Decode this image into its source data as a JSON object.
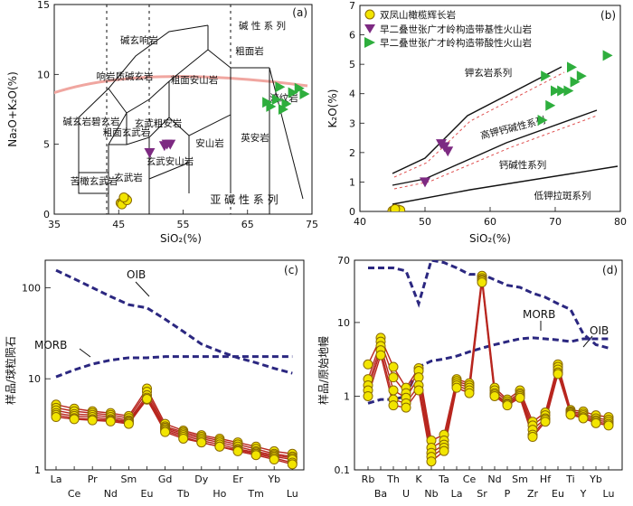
{
  "colors": {
    "basalt": "#f2e500",
    "basalt_edge": "#8a6a00",
    "mafic": "#7d2a82",
    "felsic": "#2eae3d",
    "ref_curves": "#2b2780",
    "spider_lines": "#b8261f",
    "tas_curve": "#f0a6a0"
  },
  "chart_data": [
    {
      "panel": "(a)",
      "type": "scatter",
      "xlabel": "SiO₂(%)",
      "ylabel": "Na₂O+K₂O(%)",
      "xlim": [
        35,
        75
      ],
      "ylim": [
        0,
        15
      ],
      "xticks": [
        35,
        45,
        55,
        65,
        75
      ],
      "yticks": [
        0,
        5,
        10,
        15
      ],
      "region_labels": [
        "碱玄响岩",
        "响岩质碱玄岩",
        "粗面安山岩",
        "粗面岩",
        "碱玄岩碧玄岩",
        "玄武粗安岩",
        "粗面玄武岩",
        "流纹岩",
        "玄武安山岩",
        "安山岩",
        "英安岩",
        "苦橄玄武岩",
        "玄武岩",
        "碱 性 系 列",
        "亚 碱 性 系 列"
      ],
      "series": [
        {
          "name": "双凤山橄榄辉长岩",
          "x": [
            45.3,
            45.6,
            45.9,
            46.1,
            45.5,
            46.3,
            45.8
          ],
          "y": [
            0.8,
            0.9,
            1.0,
            1.1,
            0.7,
            1.0,
            1.2
          ]
        },
        {
          "name": "早二叠世张广才岭构造带基性火山岩",
          "x": [
            49.8,
            52.1,
            52.5,
            53.0
          ],
          "y": [
            4.4,
            4.9,
            5.0,
            5.0
          ]
        },
        {
          "name": "早二叠世张广才岭构造带酸性火山岩",
          "x": [
            68.0,
            68.6,
            69.5,
            70.0,
            70.5,
            71.0,
            72.0,
            73.0,
            73.8
          ],
          "y": [
            8.0,
            7.7,
            8.2,
            9.1,
            7.5,
            7.9,
            8.7,
            9.0,
            8.6
          ]
        }
      ]
    },
    {
      "panel": "(b)",
      "type": "scatter",
      "xlabel": "SiO₂(%)",
      "ylabel": "K₂O(%)",
      "xlim": [
        40,
        80
      ],
      "ylim": [
        0,
        7
      ],
      "xticks": [
        40,
        50,
        60,
        70,
        80
      ],
      "yticks": [
        0,
        1,
        2,
        3,
        4,
        5,
        6,
        7
      ],
      "region_labels": [
        "钾玄岩系列",
        "高钾钙碱性系列",
        "钙碱性系列",
        "低钾拉斑系列"
      ],
      "legend": [
        "双凤山橄榄辉长岩",
        "早二叠世张广才岭构造带基性火山岩",
        "早二叠世张广才岭构造带酸性火山岩"
      ],
      "series": [
        {
          "name": "双凤山橄榄辉长岩",
          "x": [
            45.0,
            45.3,
            45.6,
            45.9,
            46.2,
            45.4
          ],
          "y": [
            0.02,
            0.05,
            0.03,
            0.06,
            0.04,
            0.08
          ]
        },
        {
          "name": "早二叠世张广才岭构造带基性火山岩",
          "x": [
            50.0,
            52.5,
            53.0,
            53.5
          ],
          "y": [
            1.0,
            2.3,
            2.2,
            2.05
          ]
        },
        {
          "name": "早二叠世张广才岭构造带酸性火山岩",
          "x": [
            68.0,
            68.5,
            69.2,
            70.0,
            71.0,
            72.0,
            72.5,
            73.0,
            74.0,
            78.0
          ],
          "y": [
            3.1,
            4.6,
            3.6,
            4.1,
            4.1,
            4.1,
            4.9,
            4.4,
            4.6,
            5.3
          ]
        }
      ]
    },
    {
      "panel": "(c)",
      "type": "line",
      "ylabel": "样品/球粒陨石",
      "yscale": "log",
      "ylim": [
        1,
        200
      ],
      "yticks": [
        1,
        10,
        100
      ],
      "categories": [
        "La",
        "Ce",
        "Pr",
        "Nd",
        "Sm",
        "Eu",
        "Gd",
        "Tb",
        "Dy",
        "Ho",
        "Er",
        "Tm",
        "Yb",
        "Lu"
      ],
      "reference_labels": [
        "OIB",
        "MORB"
      ],
      "references": [
        {
          "name": "OIB",
          "values": [
            155,
            125,
            100,
            80,
            65,
            60,
            45,
            33,
            24,
            20,
            17,
            15,
            13,
            11.5
          ]
        },
        {
          "name": "MORB",
          "values": [
            10.5,
            12.5,
            14.5,
            16,
            17,
            17,
            17.5,
            17.5,
            17.5,
            17.5,
            17.5,
            17.5,
            17.5,
            17.5
          ]
        }
      ],
      "series": [
        {
          "values": [
            5.2,
            4.7,
            4.4,
            4.2,
            3.9,
            7.8,
            3.2,
            2.7,
            2.4,
            2.2,
            2.0,
            1.8,
            1.6,
            1.5
          ]
        },
        {
          "values": [
            4.8,
            4.4,
            4.2,
            4.0,
            3.7,
            7.2,
            3.0,
            2.6,
            2.3,
            2.1,
            1.9,
            1.7,
            1.5,
            1.4
          ]
        },
        {
          "values": [
            4.5,
            4.1,
            4.0,
            3.8,
            3.5,
            6.6,
            2.9,
            2.5,
            2.2,
            2.0,
            1.8,
            1.6,
            1.45,
            1.35
          ]
        },
        {
          "values": [
            4.2,
            3.9,
            3.8,
            3.6,
            3.4,
            6.2,
            2.8,
            2.4,
            2.1,
            1.9,
            1.7,
            1.55,
            1.4,
            1.3
          ]
        },
        {
          "values": [
            4.0,
            3.7,
            3.6,
            3.5,
            3.3,
            5.9,
            2.7,
            2.3,
            2.0,
            1.8,
            1.65,
            1.5,
            1.35,
            1.2
          ]
        },
        {
          "values": [
            3.8,
            3.6,
            3.5,
            3.4,
            3.2,
            6.0,
            2.6,
            2.2,
            2.0,
            1.8,
            1.6,
            1.45,
            1.3,
            1.15
          ]
        }
      ]
    },
    {
      "panel": "(d)",
      "type": "line",
      "ylabel": "样品/原始地幔",
      "yscale": "log",
      "ylim": [
        0.1,
        70
      ],
      "yticks": [
        0.1,
        1,
        10,
        70
      ],
      "categories": [
        "Rb",
        "Ba",
        "Th",
        "U",
        "K",
        "Nb",
        "Ta",
        "La",
        "Ce",
        "Sr",
        "Nd",
        "P",
        "Sm",
        "Zr",
        "Hf",
        "Eu",
        "Ti",
        "Y",
        "Yb",
        "Lu"
      ],
      "reference_labels": [
        "OIB",
        "MORB"
      ],
      "references": [
        {
          "name": "OIB",
          "values": [
            55,
            55,
            55,
            50,
            18,
            70,
            65,
            55,
            45,
            45,
            38,
            32,
            30,
            25,
            22,
            18,
            15,
            7,
            5,
            4.5
          ]
        },
        {
          "name": "MORB",
          "values": [
            0.8,
            0.9,
            0.9,
            1.0,
            2.5,
            3.0,
            3.2,
            3.5,
            4.0,
            4.5,
            5.0,
            5.5,
            6.0,
            6.2,
            6.0,
            5.8,
            5.5,
            6.0,
            6.0,
            6.0
          ]
        }
      ],
      "series": [
        {
          "values": [
            2.7,
            6.2,
            2.5,
            1.3,
            2.4,
            0.25,
            0.3,
            1.7,
            1.5,
            43,
            1.3,
            0.9,
            1.2,
            0.45,
            0.6,
            2.7,
            0.65,
            0.62,
            0.55,
            0.52
          ]
        },
        {
          "values": [
            1.7,
            5.5,
            1.8,
            1.1,
            2.2,
            0.2,
            0.25,
            1.6,
            1.4,
            40,
            1.2,
            0.85,
            1.1,
            0.4,
            0.55,
            2.5,
            0.62,
            0.58,
            0.5,
            0.48
          ]
        },
        {
          "values": [
            1.4,
            4.8,
            1.2,
            0.95,
            1.8,
            0.17,
            0.22,
            1.5,
            1.3,
            38,
            1.1,
            0.8,
            1.05,
            0.35,
            0.5,
            2.3,
            0.6,
            0.55,
            0.47,
            0.45
          ]
        },
        {
          "values": [
            1.2,
            4.2,
            0.9,
            0.8,
            1.4,
            0.15,
            0.2,
            1.4,
            1.2,
            37,
            1.05,
            0.78,
            1.0,
            0.3,
            0.48,
            2.1,
            0.58,
            0.52,
            0.45,
            0.42
          ]
        },
        {
          "values": [
            1.0,
            3.6,
            0.75,
            0.7,
            1.2,
            0.13,
            0.18,
            1.3,
            1.1,
            35,
            1.0,
            0.75,
            0.95,
            0.28,
            0.45,
            2.0,
            0.56,
            0.5,
            0.43,
            0.4
          ]
        }
      ]
    }
  ]
}
